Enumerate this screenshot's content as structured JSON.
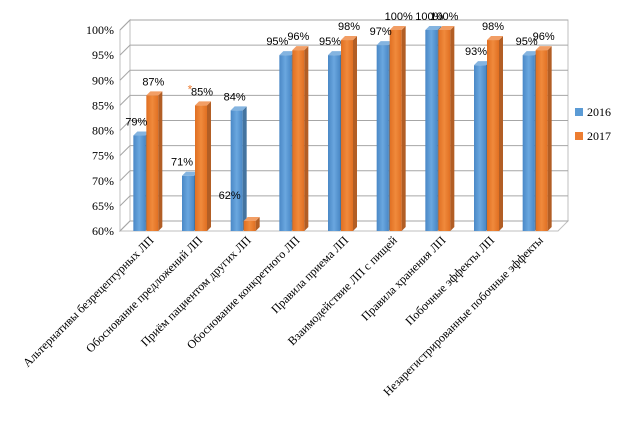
{
  "chart_data": {
    "type": "bar",
    "categories": [
      "Альтернативы безрецептурных ЛП",
      "Обоснование предложений ЛП",
      "Приём пациентом других ЛП",
      "Обоснование конкретного ЛП",
      "Правила приема ЛП",
      "Взаимодействие ЛП с пищей",
      "Правила хранения ЛП",
      "Побочные эффекты ЛП",
      "Незарегистрированные побочные эффекты"
    ],
    "series": [
      {
        "name": "2016",
        "color": "#5b9bd5",
        "values": [
          79,
          71,
          84,
          95,
          95,
          97,
          100,
          93,
          95
        ],
        "labels": [
          "79%",
          "71%",
          "84%",
          "95%",
          "95%",
          "97%",
          "100%",
          "93%",
          "95%"
        ]
      },
      {
        "name": "2017",
        "color": "#ed7d31",
        "values": [
          87,
          85,
          62,
          96,
          98,
          100,
          100,
          98,
          96
        ],
        "labels": [
          "87%",
          "85%",
          "62%",
          "96%",
          "98%",
          "100%",
          "100%",
          "98%",
          "96%"
        ]
      }
    ],
    "yticks": [
      "60%",
      "65%",
      "70%",
      "75%",
      "80%",
      "85%",
      "90%",
      "95%",
      "100%"
    ],
    "ylim": [
      60,
      100
    ],
    "annotation": "*",
    "annotation_color": "#ed7d31",
    "grid": true,
    "legend_position": "right"
  }
}
